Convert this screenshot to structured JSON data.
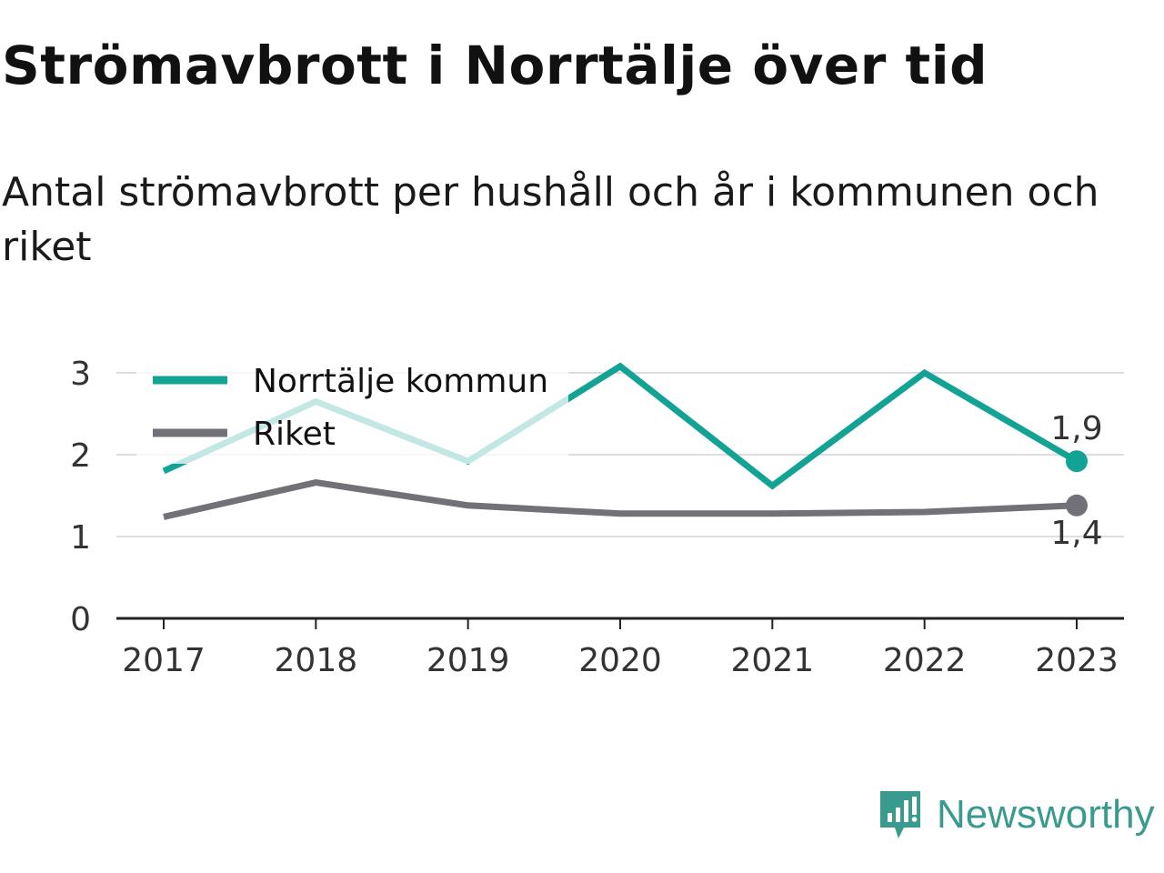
{
  "chart_data": {
    "type": "line",
    "title": "Strömavbrott i Norrtälje över tid",
    "subtitle": "Antal strömavbrott per hushåll och år i kommunen och riket",
    "xlabel": "",
    "ylabel": "",
    "categories": [
      "2017",
      "2018",
      "2019",
      "2020",
      "2021",
      "2022",
      "2023"
    ],
    "yticks": [
      "0",
      "1",
      "2",
      "3"
    ],
    "ylim": [
      0,
      3.2
    ],
    "grid": true,
    "legend_position": "top-left",
    "series": [
      {
        "name": "Norrtälje kommun",
        "color": "#13a394",
        "values": [
          1.8,
          2.65,
          1.92,
          3.08,
          1.62,
          3.0,
          1.92
        ],
        "end_label": "1,9"
      },
      {
        "name": "Riket",
        "color": "#717177",
        "values": [
          1.24,
          1.66,
          1.38,
          1.28,
          1.28,
          1.3,
          1.38
        ],
        "end_label": "1,4"
      }
    ]
  },
  "brand": {
    "name": "Newsworthy",
    "logo_icon": "newsworthy-logo-icon",
    "color": "#3a9a8e"
  }
}
